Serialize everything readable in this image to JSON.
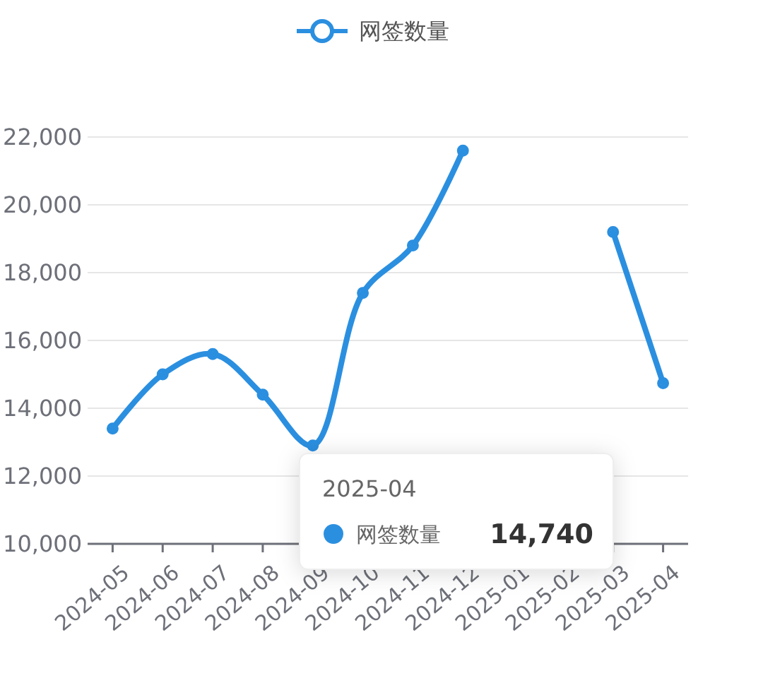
{
  "chart_data": {
    "type": "line",
    "categories": [
      "2024-05",
      "2024-06",
      "2024-07",
      "2024-08",
      "2024-09",
      "2024-10",
      "2024-11",
      "2024-12",
      "2025-01",
      "2025-02",
      "2025-03",
      "2025-04"
    ],
    "series": [
      {
        "name": "网签数量",
        "color": "#2b8fe0",
        "values": [
          13400,
          15000,
          15600,
          14400,
          12900,
          17400,
          18800,
          21600,
          null,
          null,
          19200,
          14740
        ]
      }
    ],
    "ylim": [
      10000,
      22000
    ],
    "yticks": [
      {
        "value": 10000,
        "label": "10,000"
      },
      {
        "value": 12000,
        "label": "12,000"
      },
      {
        "value": 14000,
        "label": "14,000"
      },
      {
        "value": 16000,
        "label": "16,000"
      },
      {
        "value": 18000,
        "label": "18,000"
      },
      {
        "value": 20000,
        "label": "20,000"
      },
      {
        "value": 22000,
        "label": "22,000"
      }
    ],
    "grid": "y",
    "legend": "top",
    "marker": "circle",
    "line_style": "solid",
    "annotations": [
      "2025-04",
      "网签数量",
      "14,740"
    ]
  }
}
